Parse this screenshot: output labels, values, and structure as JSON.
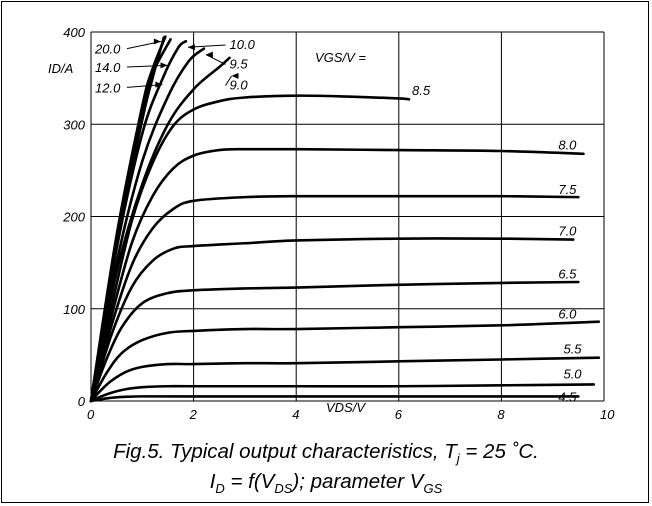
{
  "chart_data": {
    "type": "line",
    "xlabel": "VDS/V",
    "ylabel": "ID/A",
    "legend_title": "VGS/V =",
    "xlim": [
      0,
      10
    ],
    "ylim": [
      0,
      400
    ],
    "x_ticks": [
      "0",
      "2",
      "4",
      "6",
      "8",
      "10"
    ],
    "y_ticks": [
      "0",
      "100",
      "200",
      "300",
      "400"
    ],
    "grid": true,
    "series": [
      {
        "name": "4.5",
        "points": [
          [
            0,
            0
          ],
          [
            0.2,
            2
          ],
          [
            0.5,
            4
          ],
          [
            1,
            5
          ],
          [
            2,
            5
          ],
          [
            4,
            5
          ],
          [
            6,
            5
          ],
          [
            8,
            5
          ],
          [
            9.5,
            5
          ]
        ],
        "label_at": [
          9.5,
          5
        ]
      },
      {
        "name": "5.0",
        "points": [
          [
            0,
            0
          ],
          [
            0.2,
            5
          ],
          [
            0.4,
            9
          ],
          [
            0.7,
            13
          ],
          [
            1,
            15
          ],
          [
            1.5,
            16
          ],
          [
            2,
            16
          ],
          [
            4,
            16
          ],
          [
            6,
            16
          ],
          [
            8,
            17
          ],
          [
            9.8,
            18
          ]
        ],
        "label_at": [
          9.6,
          30
        ]
      },
      {
        "name": "5.5",
        "points": [
          [
            0,
            0
          ],
          [
            0.2,
            12
          ],
          [
            0.4,
            22
          ],
          [
            0.7,
            32
          ],
          [
            1,
            37
          ],
          [
            1.5,
            40
          ],
          [
            2,
            40
          ],
          [
            3,
            41
          ],
          [
            4,
            41
          ],
          [
            6,
            43
          ],
          [
            8,
            45
          ],
          [
            9.9,
            47
          ]
        ],
        "label_at": [
          9.6,
          57
        ]
      },
      {
        "name": "6.0",
        "points": [
          [
            0,
            0
          ],
          [
            0.3,
            30
          ],
          [
            0.6,
            52
          ],
          [
            1,
            66
          ],
          [
            1.5,
            74
          ],
          [
            2,
            76
          ],
          [
            3,
            78
          ],
          [
            4,
            78
          ],
          [
            6,
            80
          ],
          [
            8,
            82
          ],
          [
            9.9,
            86
          ]
        ],
        "label_at": [
          9.5,
          95
        ]
      },
      {
        "name": "6.5",
        "points": [
          [
            0,
            0
          ],
          [
            0.3,
            45
          ],
          [
            0.6,
            80
          ],
          [
            1,
            106
          ],
          [
            1.5,
            117
          ],
          [
            2,
            120
          ],
          [
            3,
            122
          ],
          [
            4,
            123
          ],
          [
            6,
            126
          ],
          [
            8,
            128
          ],
          [
            9.5,
            129
          ]
        ],
        "label_at": [
          9.5,
          138
        ]
      },
      {
        "name": "7.0",
        "points": [
          [
            0,
            0
          ],
          [
            0.4,
            72
          ],
          [
            0.8,
            124
          ],
          [
            1.2,
            152
          ],
          [
            1.6,
            165
          ],
          [
            2,
            168
          ],
          [
            3,
            171
          ],
          [
            4,
            174
          ],
          [
            6,
            176
          ],
          [
            8,
            176
          ],
          [
            9.4,
            175
          ]
        ],
        "label_at": [
          9.5,
          185
        ]
      },
      {
        "name": "7.5",
        "points": [
          [
            0,
            0
          ],
          [
            0.4,
            82
          ],
          [
            0.8,
            148
          ],
          [
            1.2,
            187
          ],
          [
            1.6,
            208
          ],
          [
            2,
            217
          ],
          [
            3,
            221
          ],
          [
            4,
            222
          ],
          [
            6,
            222
          ],
          [
            8,
            222
          ],
          [
            9.5,
            221
          ]
        ],
        "label_at": [
          9.5,
          230
        ]
      },
      {
        "name": "8.0",
        "points": [
          [
            0,
            0
          ],
          [
            0.4,
            92
          ],
          [
            0.8,
            172
          ],
          [
            1.2,
            222
          ],
          [
            1.6,
            252
          ],
          [
            2,
            266
          ],
          [
            2.5,
            272
          ],
          [
            3,
            273
          ],
          [
            4,
            273
          ],
          [
            6,
            272
          ],
          [
            8,
            271
          ],
          [
            9.6,
            268
          ]
        ],
        "label_at": [
          9.5,
          278
        ]
      },
      {
        "name": "8.5",
        "points": [
          [
            0,
            0
          ],
          [
            0.4,
            102
          ],
          [
            0.8,
            196
          ],
          [
            1.2,
            258
          ],
          [
            1.6,
            298
          ],
          [
            2,
            316
          ],
          [
            2.5,
            325
          ],
          [
            3,
            329
          ],
          [
            4,
            331
          ],
          [
            5,
            330
          ],
          [
            6,
            328
          ],
          [
            6.2,
            327
          ]
        ],
        "label_at": [
          6.2,
          334
        ]
      },
      {
        "name": "9.0",
        "points": [
          [
            0,
            0
          ],
          [
            0.5,
            140
          ],
          [
            1,
            235
          ],
          [
            1.5,
            300
          ],
          [
            2,
            338
          ],
          [
            2.5,
            362
          ],
          [
            2.7,
            372
          ]
        ],
        "label_at": [
          2.7,
          343
        ]
      },
      {
        "name": "9.5",
        "points": [
          [
            0,
            0
          ],
          [
            0.5,
            150
          ],
          [
            1,
            260
          ],
          [
            1.5,
            330
          ],
          [
            1.9,
            368
          ],
          [
            2.2,
            382
          ]
        ],
        "label_at": [
          2.7,
          366
        ]
      },
      {
        "name": "10.0",
        "points": [
          [
            0,
            0
          ],
          [
            0.5,
            165
          ],
          [
            1,
            290
          ],
          [
            1.4,
            350
          ],
          [
            1.7,
            383
          ],
          [
            1.85,
            390
          ]
        ],
        "label_at": [
          2.7,
          387
        ]
      },
      {
        "name": "12.0",
        "points": [
          [
            0,
            0
          ],
          [
            0.5,
            180
          ],
          [
            1,
            320
          ],
          [
            1.2,
            360
          ],
          [
            1.45,
            395
          ]
        ],
        "label_at": [
          0,
          340
        ]
      },
      {
        "name": "14.0",
        "points": [
          [
            0,
            0
          ],
          [
            0.5,
            175
          ],
          [
            1,
            315
          ],
          [
            1.2,
            355
          ],
          [
            1.55,
            392
          ]
        ],
        "label_at": [
          0,
          362
        ]
      },
      {
        "name": "20.0",
        "points": [
          [
            0,
            0
          ],
          [
            0.5,
            170
          ],
          [
            1,
            305
          ],
          [
            1.2,
            350
          ],
          [
            1.42,
            394
          ]
        ],
        "label_at": [
          0,
          382
        ]
      }
    ]
  },
  "caption": {
    "line1_pre": "Fig.5.  Typical output characteristics, T",
    "line1_sub": "j",
    "line1_post": " = 25 ˚C.",
    "line2_a": "I",
    "line2_a_sub": "D",
    "line2_b": " = f(V",
    "line2_b_sub": "DS",
    "line2_c": "); parameter V",
    "line2_c_sub": "GS"
  }
}
